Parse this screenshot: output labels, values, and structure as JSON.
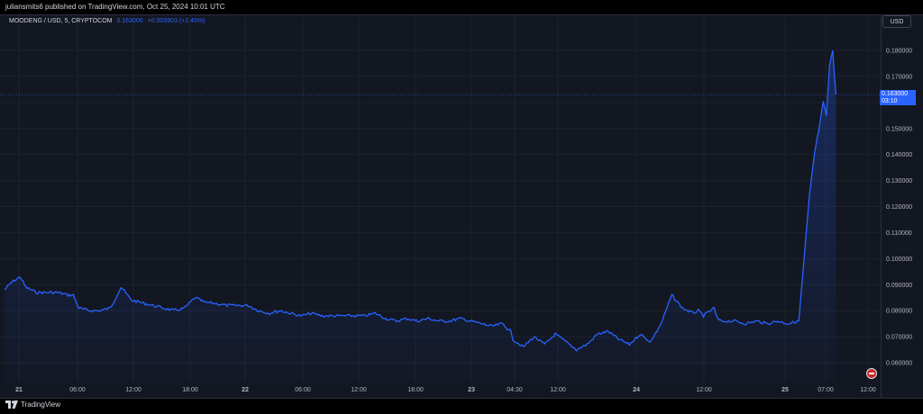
{
  "header": {
    "published": "juliansmits6 published on TradingView.com, Oct 25, 2024 10:01 UTC"
  },
  "legend": {
    "symbol": "MOODENG / USD, 5, CRYPTOCOM",
    "price": "0.163000",
    "change": "+0.003903 (+2.45%)"
  },
  "currency_button": "USD",
  "last_price": {
    "value": "0.163000",
    "countdown": "03:10"
  },
  "footer": {
    "brand": "TradingView"
  },
  "colors": {
    "background": "#131722",
    "line": "#2962ff",
    "grid": "#1e222d",
    "text": "#d1d4dc"
  },
  "icons": {
    "event_flag": "red-flag-icon",
    "logo": "tradingview-logo-icon"
  },
  "chart_data": {
    "type": "line",
    "title": "MOODENG / USD, 5, CRYPTOCOM",
    "xlabel": "",
    "ylabel": "",
    "ylim": [
      0.054,
      0.184
    ],
    "y_ticks": [
      "0.180000",
      "0.170000",
      "0.160000",
      "0.150000",
      "0.140000",
      "0.130000",
      "0.120000",
      "0.110000",
      "0.100000",
      "0.090000",
      "0.080000",
      "0.070000",
      "0.060000"
    ],
    "x_ticks": [
      "21",
      "06:00",
      "12:00",
      "18:00",
      "22",
      "06:00",
      "12:00",
      "18:00",
      "23",
      "04:30",
      "12:00",
      "24",
      "12:00",
      "25",
      "07:00",
      "12:00"
    ],
    "x_tick_bold": [
      true,
      false,
      false,
      false,
      true,
      false,
      false,
      false,
      true,
      false,
      false,
      true,
      false,
      true,
      false,
      false
    ],
    "grid": true,
    "series": [
      {
        "x": [
          0,
          0.7,
          1.5,
          2,
          3,
          4,
          5,
          6,
          6.5,
          7,
          8,
          9,
          10,
          11,
          12,
          13,
          14,
          15,
          16,
          17,
          18,
          19,
          19.2,
          19.6,
          21,
          22,
          23,
          24,
          25,
          26,
          27,
          28,
          29,
          30,
          31,
          32,
          33,
          34,
          35,
          36,
          37,
          38,
          39,
          40,
          41,
          42,
          43,
          44,
          45,
          46,
          47,
          47.8,
          48,
          49,
          50,
          51,
          52,
          53,
          54,
          55,
          56,
          57,
          58,
          59,
          60,
          61,
          62,
          63,
          64,
          65,
          65.5,
          66,
          67,
          67.3,
          67.6,
          67.9,
          68.5,
          69,
          70,
          71,
          72,
          73,
          74,
          75,
          76,
          76.5,
          77,
          77.3,
          77.6,
          77.9,
          78.2,
          78.5
        ],
        "values": [
          0.088,
          0.091,
          0.093,
          0.089,
          0.087,
          0.087,
          0.087,
          0.086,
          0.086,
          0.081,
          0.08,
          0.08,
          0.081,
          0.089,
          0.084,
          0.083,
          0.082,
          0.081,
          0.08,
          0.081,
          0.085,
          0.083,
          0.083,
          0.083,
          0.082,
          0.082,
          0.082,
          0.08,
          0.079,
          0.08,
          0.079,
          0.078,
          0.079,
          0.078,
          0.078,
          0.078,
          0.078,
          0.078,
          0.079,
          0.077,
          0.076,
          0.077,
          0.076,
          0.077,
          0.076,
          0.076,
          0.077,
          0.076,
          0.075,
          0.074,
          0.075,
          0.072,
          0.069,
          0.066,
          0.07,
          0.067,
          0.071,
          0.068,
          0.065,
          0.067,
          0.071,
          0.072,
          0.069,
          0.067,
          0.071,
          0.068,
          0.075,
          0.086,
          0.081,
          0.079,
          0.08,
          0.078,
          0.081,
          0.077,
          0.076,
          0.076,
          0.076,
          0.076,
          0.075,
          0.076,
          0.075,
          0.076,
          0.075,
          0.076,
          0.124,
          0.141,
          0.152,
          0.16,
          0.155,
          0.174,
          0.18,
          0.163
        ]
      }
    ]
  }
}
